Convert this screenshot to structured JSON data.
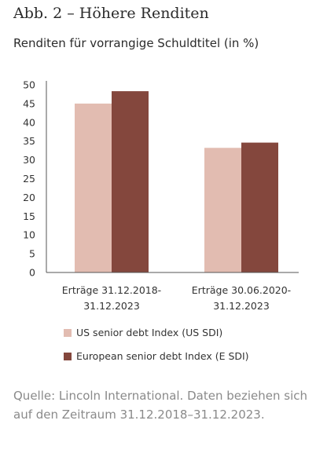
{
  "header": {
    "title": "Abb. 2 – Höhere Renditen",
    "subtitle": "Renditen für vorrangige Schuldtitel (in %)"
  },
  "chart_data": {
    "type": "bar",
    "title": "",
    "xlabel": "",
    "ylabel": "",
    "ylim": [
      0,
      50
    ],
    "yticks": [
      0,
      5,
      10,
      15,
      20,
      25,
      30,
      35,
      40,
      45,
      50
    ],
    "grid": false,
    "legend_position": "bottom",
    "categories": [
      [
        "Erträge 31.12.2018-",
        "31.12.2023"
      ],
      [
        "Erträge 30.06.2020-",
        "31.12.2023"
      ]
    ],
    "series": [
      {
        "name": "US senior debt Index (US SDI)",
        "color": "#e2bcb1",
        "values": [
          45.0,
          33.2
        ]
      },
      {
        "name": "European senior debt Index (E SDI)",
        "color": "#84473d",
        "values": [
          48.3,
          34.6
        ]
      }
    ]
  },
  "footer": {
    "source": "Quelle: Lincoln International. Daten beziehen sich auf den Zeitraum 31.12.2018–31.12.2023."
  }
}
